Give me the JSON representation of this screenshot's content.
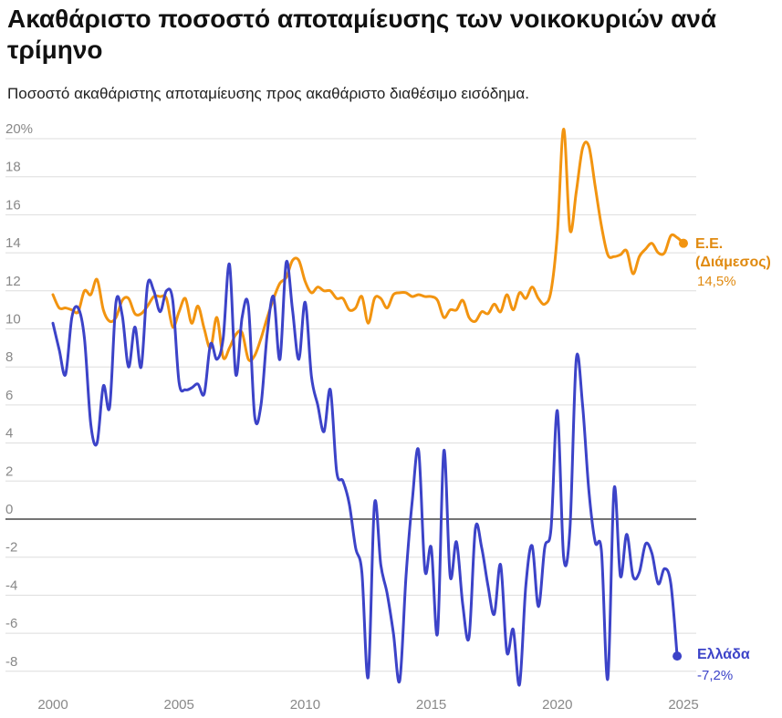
{
  "chart_data": {
    "type": "line",
    "title": "Ακαθάριστο ποσοστό αποταμίευσης των νοικοκυριών ανά τρίμηνο",
    "subtitle": "Ποσοστό ακαθάριστης αποταμίευσης προς ακαθάριστο διαθέσιμο εισόδημα.",
    "xlabel": "",
    "ylabel": "",
    "xlim": [
      1999.5,
      2025.5
    ],
    "ylim": [
      -8.5,
      21
    ],
    "y_ticks": [
      {
        "value": 20,
        "label": "20%"
      },
      {
        "value": 18,
        "label": "18"
      },
      {
        "value": 16,
        "label": "16"
      },
      {
        "value": 14,
        "label": "14"
      },
      {
        "value": 12,
        "label": "12"
      },
      {
        "value": 10,
        "label": "10"
      },
      {
        "value": 8,
        "label": "8"
      },
      {
        "value": 6,
        "label": "6"
      },
      {
        "value": 4,
        "label": "4"
      },
      {
        "value": 2,
        "label": "2"
      },
      {
        "value": 0,
        "label": "0"
      },
      {
        "value": -2,
        "label": "-2"
      },
      {
        "value": -4,
        "label": "-4"
      },
      {
        "value": -6,
        "label": "-6"
      },
      {
        "value": -8,
        "label": "-8"
      }
    ],
    "x_ticks": [
      {
        "value": 2000,
        "label": "2000"
      },
      {
        "value": 2005,
        "label": "2005"
      },
      {
        "value": 2010,
        "label": "2010"
      },
      {
        "value": 2015,
        "label": "2015"
      },
      {
        "value": 2020,
        "label": "2020"
      },
      {
        "value": 2025,
        "label": "2025"
      }
    ],
    "grid": true,
    "series": [
      {
        "name": "Ε.Ε. (Διάμεσος)",
        "label_line1": "Ε.Ε.",
        "label_line2": "(Διάμεσος)",
        "end_value_label": "14,5%",
        "color": "#f29410",
        "points": [
          [
            2000.0,
            11.8
          ],
          [
            2000.25,
            11.1
          ],
          [
            2000.5,
            11.1
          ],
          [
            2000.75,
            11.0
          ],
          [
            2001.0,
            10.9
          ],
          [
            2001.25,
            12.0
          ],
          [
            2001.5,
            11.8
          ],
          [
            2001.75,
            12.6
          ],
          [
            2002.0,
            11.0
          ],
          [
            2002.25,
            10.4
          ],
          [
            2002.5,
            10.6
          ],
          [
            2002.75,
            11.5
          ],
          [
            2003.0,
            11.6
          ],
          [
            2003.25,
            10.8
          ],
          [
            2003.5,
            10.8
          ],
          [
            2003.75,
            11.2
          ],
          [
            2004.0,
            11.7
          ],
          [
            2004.25,
            11.7
          ],
          [
            2004.5,
            11.6
          ],
          [
            2004.75,
            10.1
          ],
          [
            2005.0,
            10.9
          ],
          [
            2005.25,
            11.6
          ],
          [
            2005.5,
            10.3
          ],
          [
            2005.75,
            11.2
          ],
          [
            2006.0,
            10.0
          ],
          [
            2006.25,
            9.0
          ],
          [
            2006.5,
            10.6
          ],
          [
            2006.75,
            8.5
          ],
          [
            2007.0,
            9.0
          ],
          [
            2007.25,
            9.7
          ],
          [
            2007.5,
            9.8
          ],
          [
            2007.75,
            8.4
          ],
          [
            2008.0,
            8.6
          ],
          [
            2008.25,
            9.5
          ],
          [
            2008.5,
            10.6
          ],
          [
            2008.75,
            11.6
          ],
          [
            2009.0,
            12.4
          ],
          [
            2009.25,
            12.7
          ],
          [
            2009.5,
            13.6
          ],
          [
            2009.75,
            13.6
          ],
          [
            2010.0,
            12.5
          ],
          [
            2010.25,
            11.9
          ],
          [
            2010.5,
            12.2
          ],
          [
            2010.75,
            12.0
          ],
          [
            2011.0,
            12.0
          ],
          [
            2011.25,
            11.6
          ],
          [
            2011.5,
            11.6
          ],
          [
            2011.75,
            11.0
          ],
          [
            2012.0,
            11.1
          ],
          [
            2012.25,
            11.7
          ],
          [
            2012.5,
            10.3
          ],
          [
            2012.75,
            11.6
          ],
          [
            2013.0,
            11.6
          ],
          [
            2013.25,
            11.1
          ],
          [
            2013.5,
            11.8
          ],
          [
            2013.75,
            11.9
          ],
          [
            2014.0,
            11.9
          ],
          [
            2014.25,
            11.7
          ],
          [
            2014.5,
            11.8
          ],
          [
            2014.75,
            11.7
          ],
          [
            2015.0,
            11.7
          ],
          [
            2015.25,
            11.5
          ],
          [
            2015.5,
            10.6
          ],
          [
            2015.75,
            11.0
          ],
          [
            2016.0,
            11.0
          ],
          [
            2016.25,
            11.5
          ],
          [
            2016.5,
            10.6
          ],
          [
            2016.75,
            10.4
          ],
          [
            2017.0,
            10.9
          ],
          [
            2017.25,
            10.8
          ],
          [
            2017.5,
            11.3
          ],
          [
            2017.75,
            10.9
          ],
          [
            2018.0,
            11.8
          ],
          [
            2018.25,
            11.0
          ],
          [
            2018.5,
            11.9
          ],
          [
            2018.75,
            11.6
          ],
          [
            2019.0,
            12.2
          ],
          [
            2019.25,
            11.6
          ],
          [
            2019.5,
            11.3
          ],
          [
            2019.75,
            12.0
          ],
          [
            2020.0,
            15.0
          ],
          [
            2020.25,
            20.5
          ],
          [
            2020.5,
            15.2
          ],
          [
            2020.75,
            17.2
          ],
          [
            2021.0,
            19.5
          ],
          [
            2021.25,
            19.6
          ],
          [
            2021.5,
            17.5
          ],
          [
            2021.75,
            15.4
          ],
          [
            2022.0,
            13.9
          ],
          [
            2022.25,
            13.8
          ],
          [
            2022.5,
            13.9
          ],
          [
            2022.75,
            14.1
          ],
          [
            2023.0,
            12.9
          ],
          [
            2023.25,
            13.8
          ],
          [
            2023.5,
            14.2
          ],
          [
            2023.75,
            14.5
          ],
          [
            2024.0,
            14.0
          ],
          [
            2024.25,
            14.0
          ],
          [
            2024.5,
            14.9
          ],
          [
            2024.75,
            14.8
          ],
          [
            2025.0,
            14.5
          ]
        ]
      },
      {
        "name": "Ελλάδα",
        "label_line1": "Ελλάδα",
        "end_value_label": "-7,2%",
        "color": "#3c43c8",
        "points": [
          [
            2000.0,
            10.3
          ],
          [
            2000.25,
            8.9
          ],
          [
            2000.5,
            7.6
          ],
          [
            2000.75,
            10.6
          ],
          [
            2001.0,
            11.1
          ],
          [
            2001.25,
            9.5
          ],
          [
            2001.5,
            5.0
          ],
          [
            2001.75,
            4.0
          ],
          [
            2002.0,
            7.0
          ],
          [
            2002.25,
            5.9
          ],
          [
            2002.5,
            11.4
          ],
          [
            2002.75,
            10.7
          ],
          [
            2003.0,
            8.0
          ],
          [
            2003.25,
            10.1
          ],
          [
            2003.5,
            8.0
          ],
          [
            2003.75,
            12.3
          ],
          [
            2004.0,
            12.0
          ],
          [
            2004.25,
            10.9
          ],
          [
            2004.5,
            12.0
          ],
          [
            2004.75,
            11.5
          ],
          [
            2005.0,
            7.2
          ],
          [
            2005.25,
            6.8
          ],
          [
            2005.5,
            6.9
          ],
          [
            2005.75,
            7.1
          ],
          [
            2006.0,
            6.6
          ],
          [
            2006.25,
            9.2
          ],
          [
            2006.5,
            8.4
          ],
          [
            2006.75,
            9.5
          ],
          [
            2007.0,
            13.4
          ],
          [
            2007.25,
            7.6
          ],
          [
            2007.5,
            10.6
          ],
          [
            2007.75,
            11.2
          ],
          [
            2008.0,
            5.4
          ],
          [
            2008.25,
            6.0
          ],
          [
            2008.5,
            9.8
          ],
          [
            2008.75,
            11.7
          ],
          [
            2009.0,
            8.4
          ],
          [
            2009.25,
            13.5
          ],
          [
            2009.5,
            11.0
          ],
          [
            2009.75,
            8.4
          ],
          [
            2010.0,
            11.4
          ],
          [
            2010.25,
            7.5
          ],
          [
            2010.5,
            6.0
          ],
          [
            2010.75,
            4.6
          ],
          [
            2011.0,
            6.8
          ],
          [
            2011.25,
            2.5
          ],
          [
            2011.5,
            2.0
          ],
          [
            2011.75,
            0.8
          ],
          [
            2012.0,
            -1.5
          ],
          [
            2012.25,
            -2.8
          ],
          [
            2012.5,
            -8.3
          ],
          [
            2012.75,
            0.8
          ],
          [
            2013.0,
            -2.4
          ],
          [
            2013.25,
            -3.9
          ],
          [
            2013.5,
            -6.0
          ],
          [
            2013.75,
            -8.5
          ],
          [
            2014.0,
            -3.0
          ],
          [
            2014.25,
            1.0
          ],
          [
            2014.5,
            3.6
          ],
          [
            2014.75,
            -2.7
          ],
          [
            2015.0,
            -1.5
          ],
          [
            2015.25,
            -6.0
          ],
          [
            2015.5,
            3.6
          ],
          [
            2015.75,
            -3.0
          ],
          [
            2016.0,
            -1.2
          ],
          [
            2016.25,
            -4.5
          ],
          [
            2016.5,
            -6.2
          ],
          [
            2016.75,
            -0.5
          ],
          [
            2017.0,
            -1.5
          ],
          [
            2017.25,
            -3.5
          ],
          [
            2017.5,
            -5.0
          ],
          [
            2017.75,
            -2.4
          ],
          [
            2018.0,
            -7.0
          ],
          [
            2018.25,
            -5.8
          ],
          [
            2018.5,
            -8.7
          ],
          [
            2018.75,
            -3.5
          ],
          [
            2019.0,
            -1.4
          ],
          [
            2019.25,
            -4.6
          ],
          [
            2019.5,
            -1.5
          ],
          [
            2019.75,
            -0.5
          ],
          [
            2020.0,
            5.7
          ],
          [
            2020.25,
            -2.0
          ],
          [
            2020.5,
            -0.5
          ],
          [
            2020.75,
            8.4
          ],
          [
            2021.0,
            6.0
          ],
          [
            2021.25,
            1.5
          ],
          [
            2021.5,
            -1.2
          ],
          [
            2021.75,
            -1.7
          ],
          [
            2022.0,
            -8.4
          ],
          [
            2022.25,
            1.6
          ],
          [
            2022.5,
            -3.0
          ],
          [
            2022.75,
            -0.8
          ],
          [
            2023.0,
            -3.0
          ],
          [
            2023.25,
            -2.8
          ],
          [
            2023.5,
            -1.3
          ],
          [
            2023.75,
            -1.8
          ],
          [
            2024.0,
            -3.4
          ],
          [
            2024.25,
            -2.6
          ],
          [
            2024.5,
            -3.4
          ],
          [
            2024.75,
            -7.2
          ]
        ]
      }
    ]
  }
}
